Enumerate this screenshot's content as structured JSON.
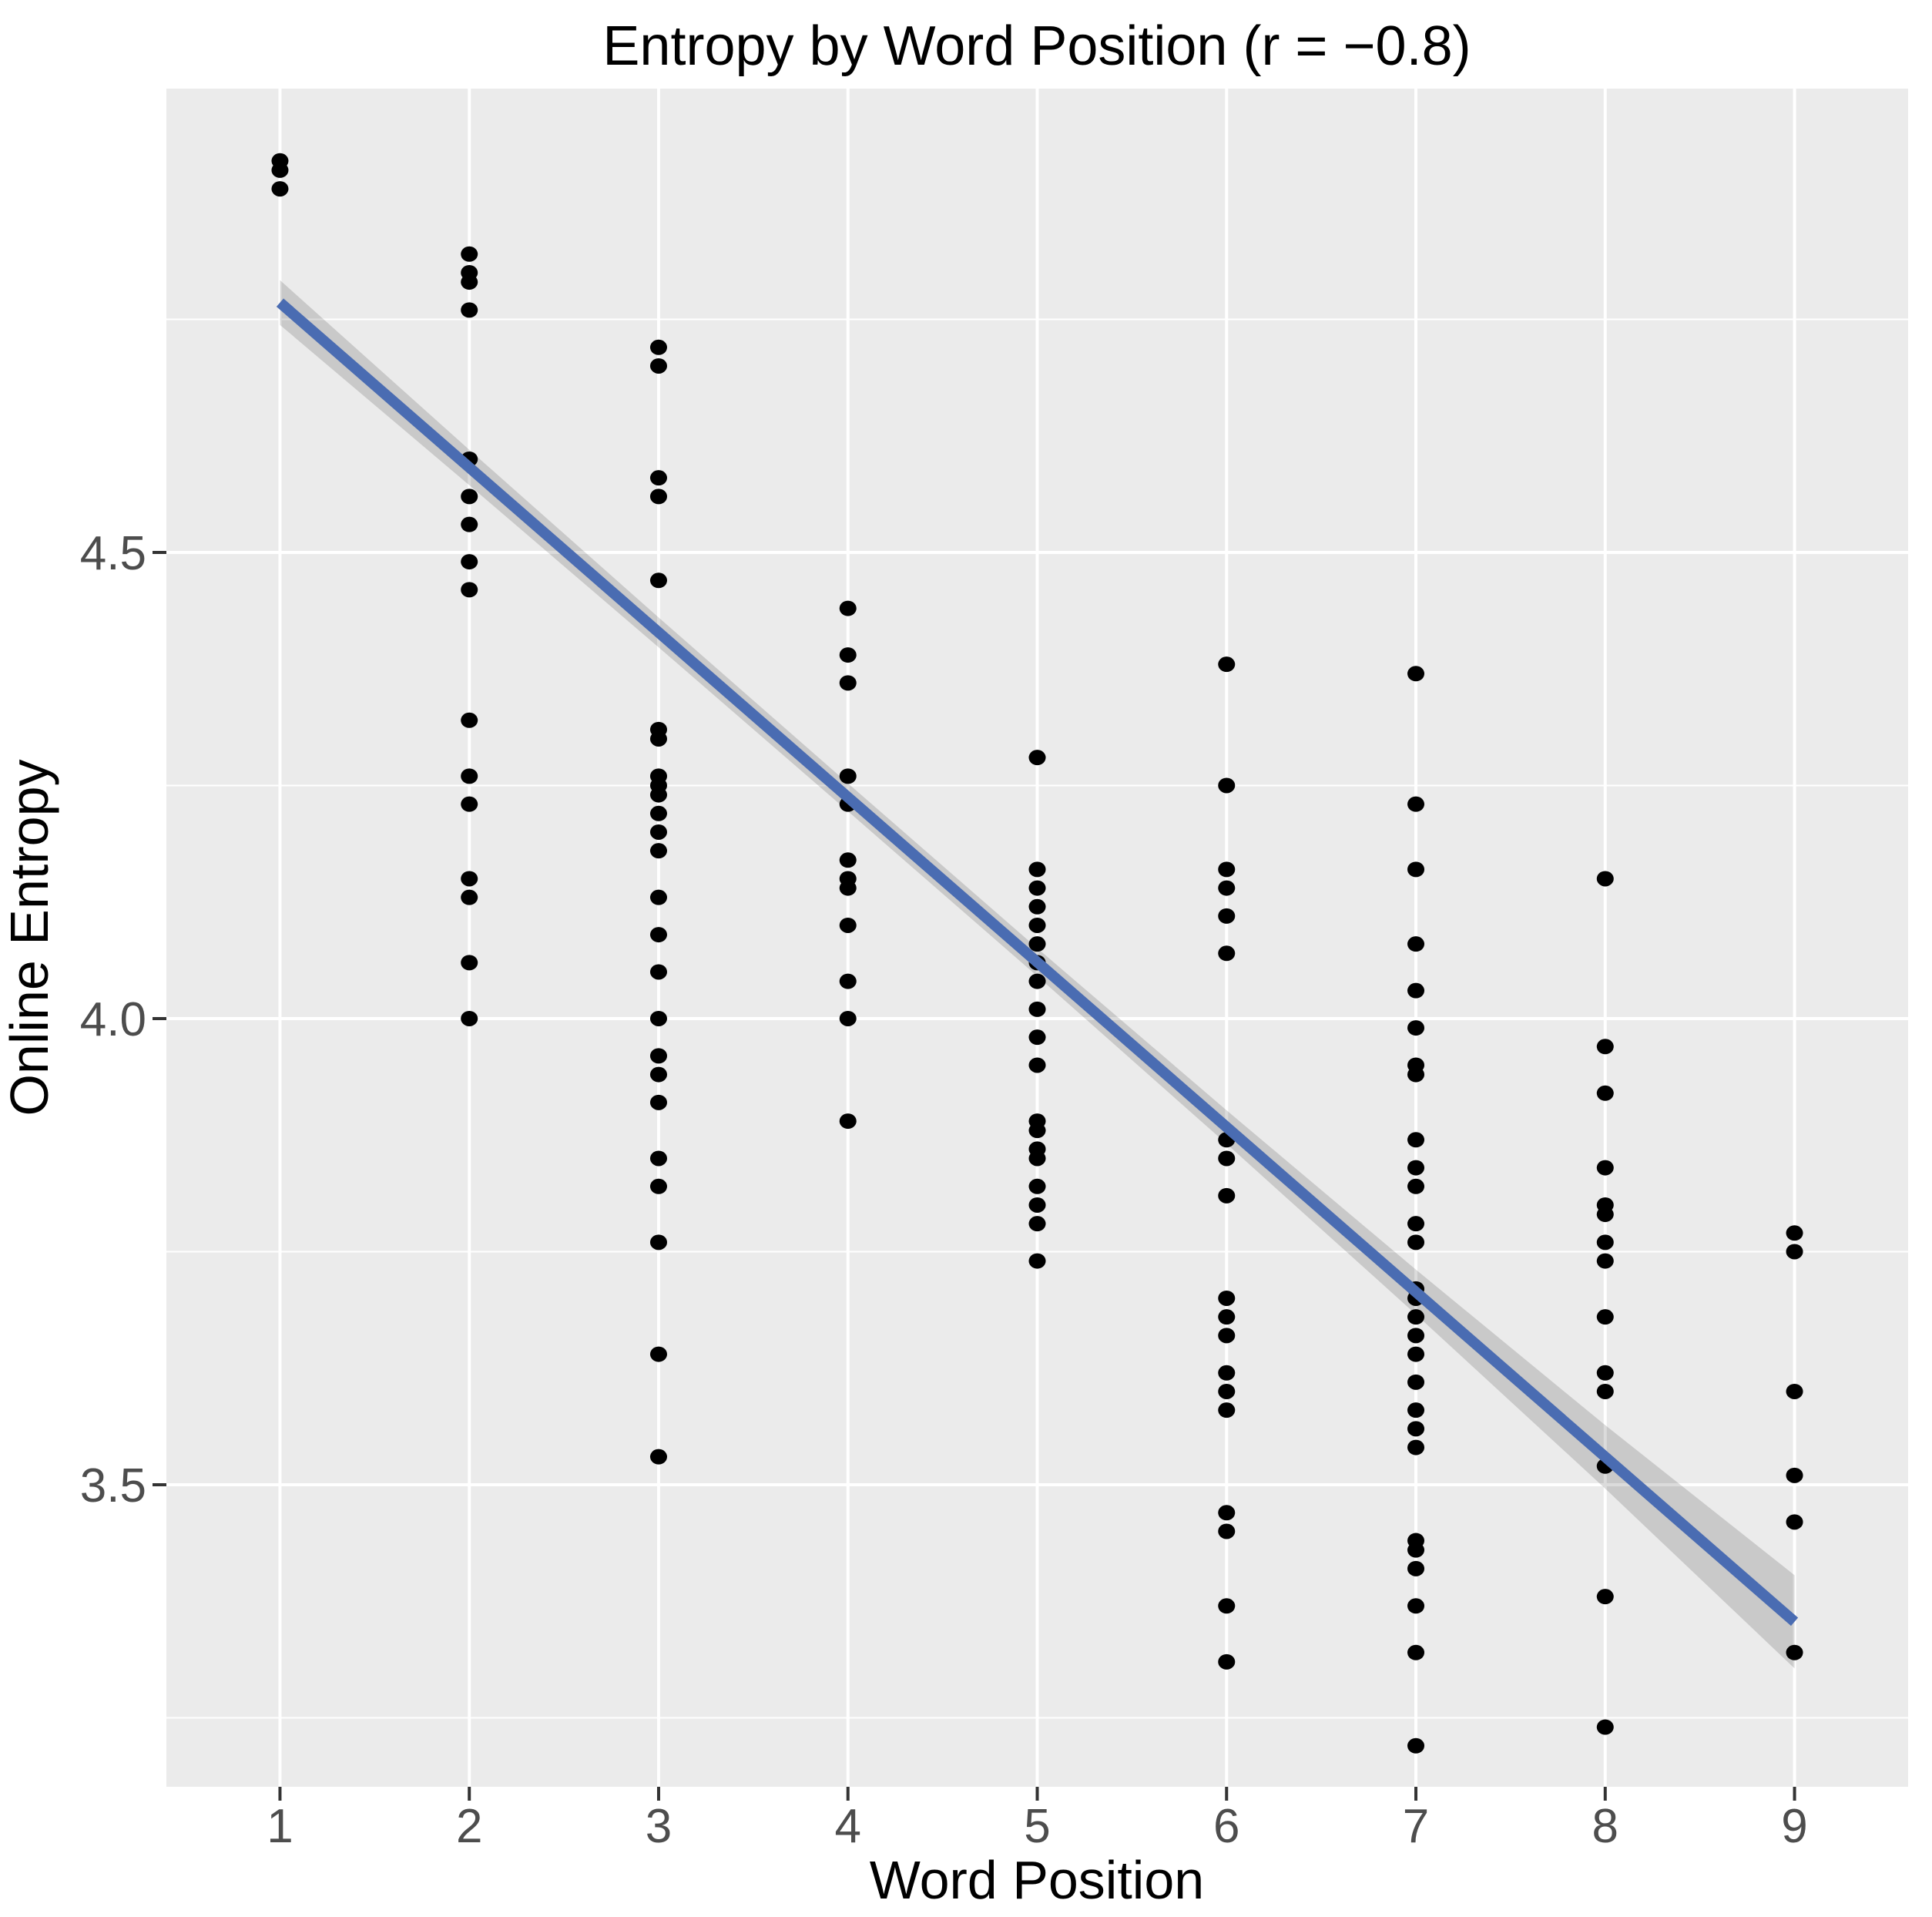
{
  "chart_data": {
    "type": "scatter",
    "title": "Entropy by Word Position (r = −0.8)",
    "xlabel": "Word Position",
    "ylabel": "Online Entropy",
    "x_ticks": [
      1,
      2,
      3,
      4,
      5,
      6,
      7,
      8,
      9
    ],
    "x_tick_labels": [
      "1",
      "2",
      "3",
      "4",
      "5",
      "6",
      "7",
      "8",
      "9"
    ],
    "y_ticks": [
      3.5,
      4.0,
      4.5
    ],
    "y_tick_labels": [
      "3.5",
      "4.0",
      "4.5"
    ],
    "y_minor_gridlines": [
      3.25,
      3.75,
      4.25,
      4.75
    ],
    "xlim": [
      0.4,
      9.6
    ],
    "ylim": [
      3.176,
      4.9975
    ],
    "grid": "white major gridlines at all ticks, white minor y gridlines, gray panel",
    "legend_position": "none",
    "correlation_label": "r = −0.8",
    "series": [
      {
        "name": "online-entropy-points",
        "points_by_x": {
          "1": [
            4.92,
            4.91,
            4.89
          ],
          "2": [
            4.82,
            4.8,
            4.79,
            4.76,
            4.6,
            4.56,
            4.53,
            4.49,
            4.46,
            4.32,
            4.26,
            4.23,
            4.15,
            4.13,
            4.06,
            4.0
          ],
          "3": [
            4.72,
            4.7,
            4.58,
            4.56,
            4.47,
            4.31,
            4.3,
            4.26,
            4.25,
            4.24,
            4.22,
            4.2,
            4.18,
            4.13,
            4.09,
            4.05,
            4.0,
            3.96,
            3.94,
            3.91,
            3.85,
            3.82,
            3.76,
            3.64,
            3.53
          ],
          "4": [
            4.44,
            4.39,
            4.36,
            4.26,
            4.23,
            4.17,
            4.15,
            4.14,
            4.1,
            4.04,
            4.0,
            3.89
          ],
          "5": [
            4.28,
            4.16,
            4.14,
            4.12,
            4.1,
            4.08,
            4.06,
            4.04,
            4.01,
            3.98,
            3.95,
            3.89,
            3.88,
            3.86,
            3.85,
            3.82,
            3.8,
            3.78,
            3.74
          ],
          "6": [
            4.38,
            4.25,
            4.16,
            4.14,
            4.11,
            4.07,
            3.87,
            3.85,
            3.81,
            3.7,
            3.68,
            3.66,
            3.62,
            3.6,
            3.58,
            3.47,
            3.45,
            3.37,
            3.31
          ],
          "7": [
            4.37,
            4.23,
            4.16,
            4.08,
            4.03,
            3.99,
            3.95,
            3.94,
            3.87,
            3.84,
            3.82,
            3.78,
            3.76,
            3.71,
            3.7,
            3.68,
            3.66,
            3.64,
            3.61,
            3.58,
            3.56,
            3.54,
            3.44,
            3.43,
            3.41,
            3.37,
            3.32,
            3.22
          ],
          "8": [
            4.15,
            3.97,
            3.92,
            3.84,
            3.8,
            3.79,
            3.76,
            3.74,
            3.68,
            3.62,
            3.6,
            3.52,
            3.38,
            3.24
          ],
          "9": [
            3.77,
            3.75,
            3.6,
            3.51,
            3.46,
            3.32
          ]
        }
      }
    ],
    "regression_line": {
      "x": [
        1,
        9
      ],
      "y": [
        4.768,
        3.353
      ],
      "slope_per_position": -0.177
    },
    "ci_band_half_width_by_x": [
      0.024,
      0.019,
      0.016,
      0.015,
      0.015,
      0.018,
      0.024,
      0.034,
      0.05
    ],
    "colors": {
      "point": "#000000",
      "regression_line": "#4a6cb2",
      "ci_band": "rgba(0,0,0,0.14)",
      "panel_background": "#EBEBEB",
      "gridline": "#FFFFFF",
      "tick_mark": "#333333",
      "tick_label": "#4D4D4D",
      "title_text": "#000000",
      "page_background": "#FFFFFF"
    },
    "layout": {
      "panel_left": 216,
      "panel_top": 115,
      "panel_right": 2477,
      "panel_bottom": 2319,
      "title_font_px": 72,
      "axis_title_font_px": 70,
      "tick_label_font_px": 62,
      "point_rx": 11,
      "point_ry": 10,
      "line_width": 14,
      "major_grid_width": 4,
      "minor_grid_width": 2,
      "tick_length": 18
    }
  }
}
